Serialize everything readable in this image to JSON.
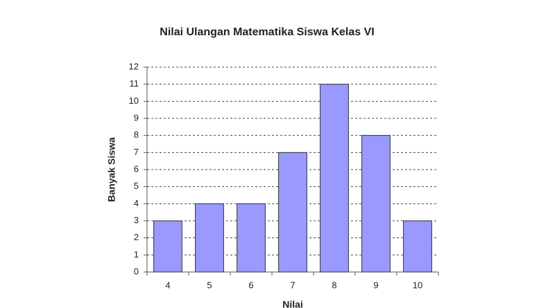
{
  "chart_data": {
    "type": "bar",
    "title": "Nilai Ulangan Matematika Siswa Kelas VI",
    "x_label": "Nilai",
    "y_label": "Banyak Siswa",
    "categories": [
      "4",
      "5",
      "6",
      "7",
      "8",
      "9",
      "10"
    ],
    "values": [
      3,
      4,
      4,
      7,
      11,
      8,
      3
    ],
    "color": "#9999ff",
    "ylim": [
      0,
      12
    ],
    "yticks": [
      0,
      1,
      2,
      3,
      4,
      5,
      6,
      7,
      8,
      9,
      10,
      11,
      12
    ],
    "grid": true
  }
}
